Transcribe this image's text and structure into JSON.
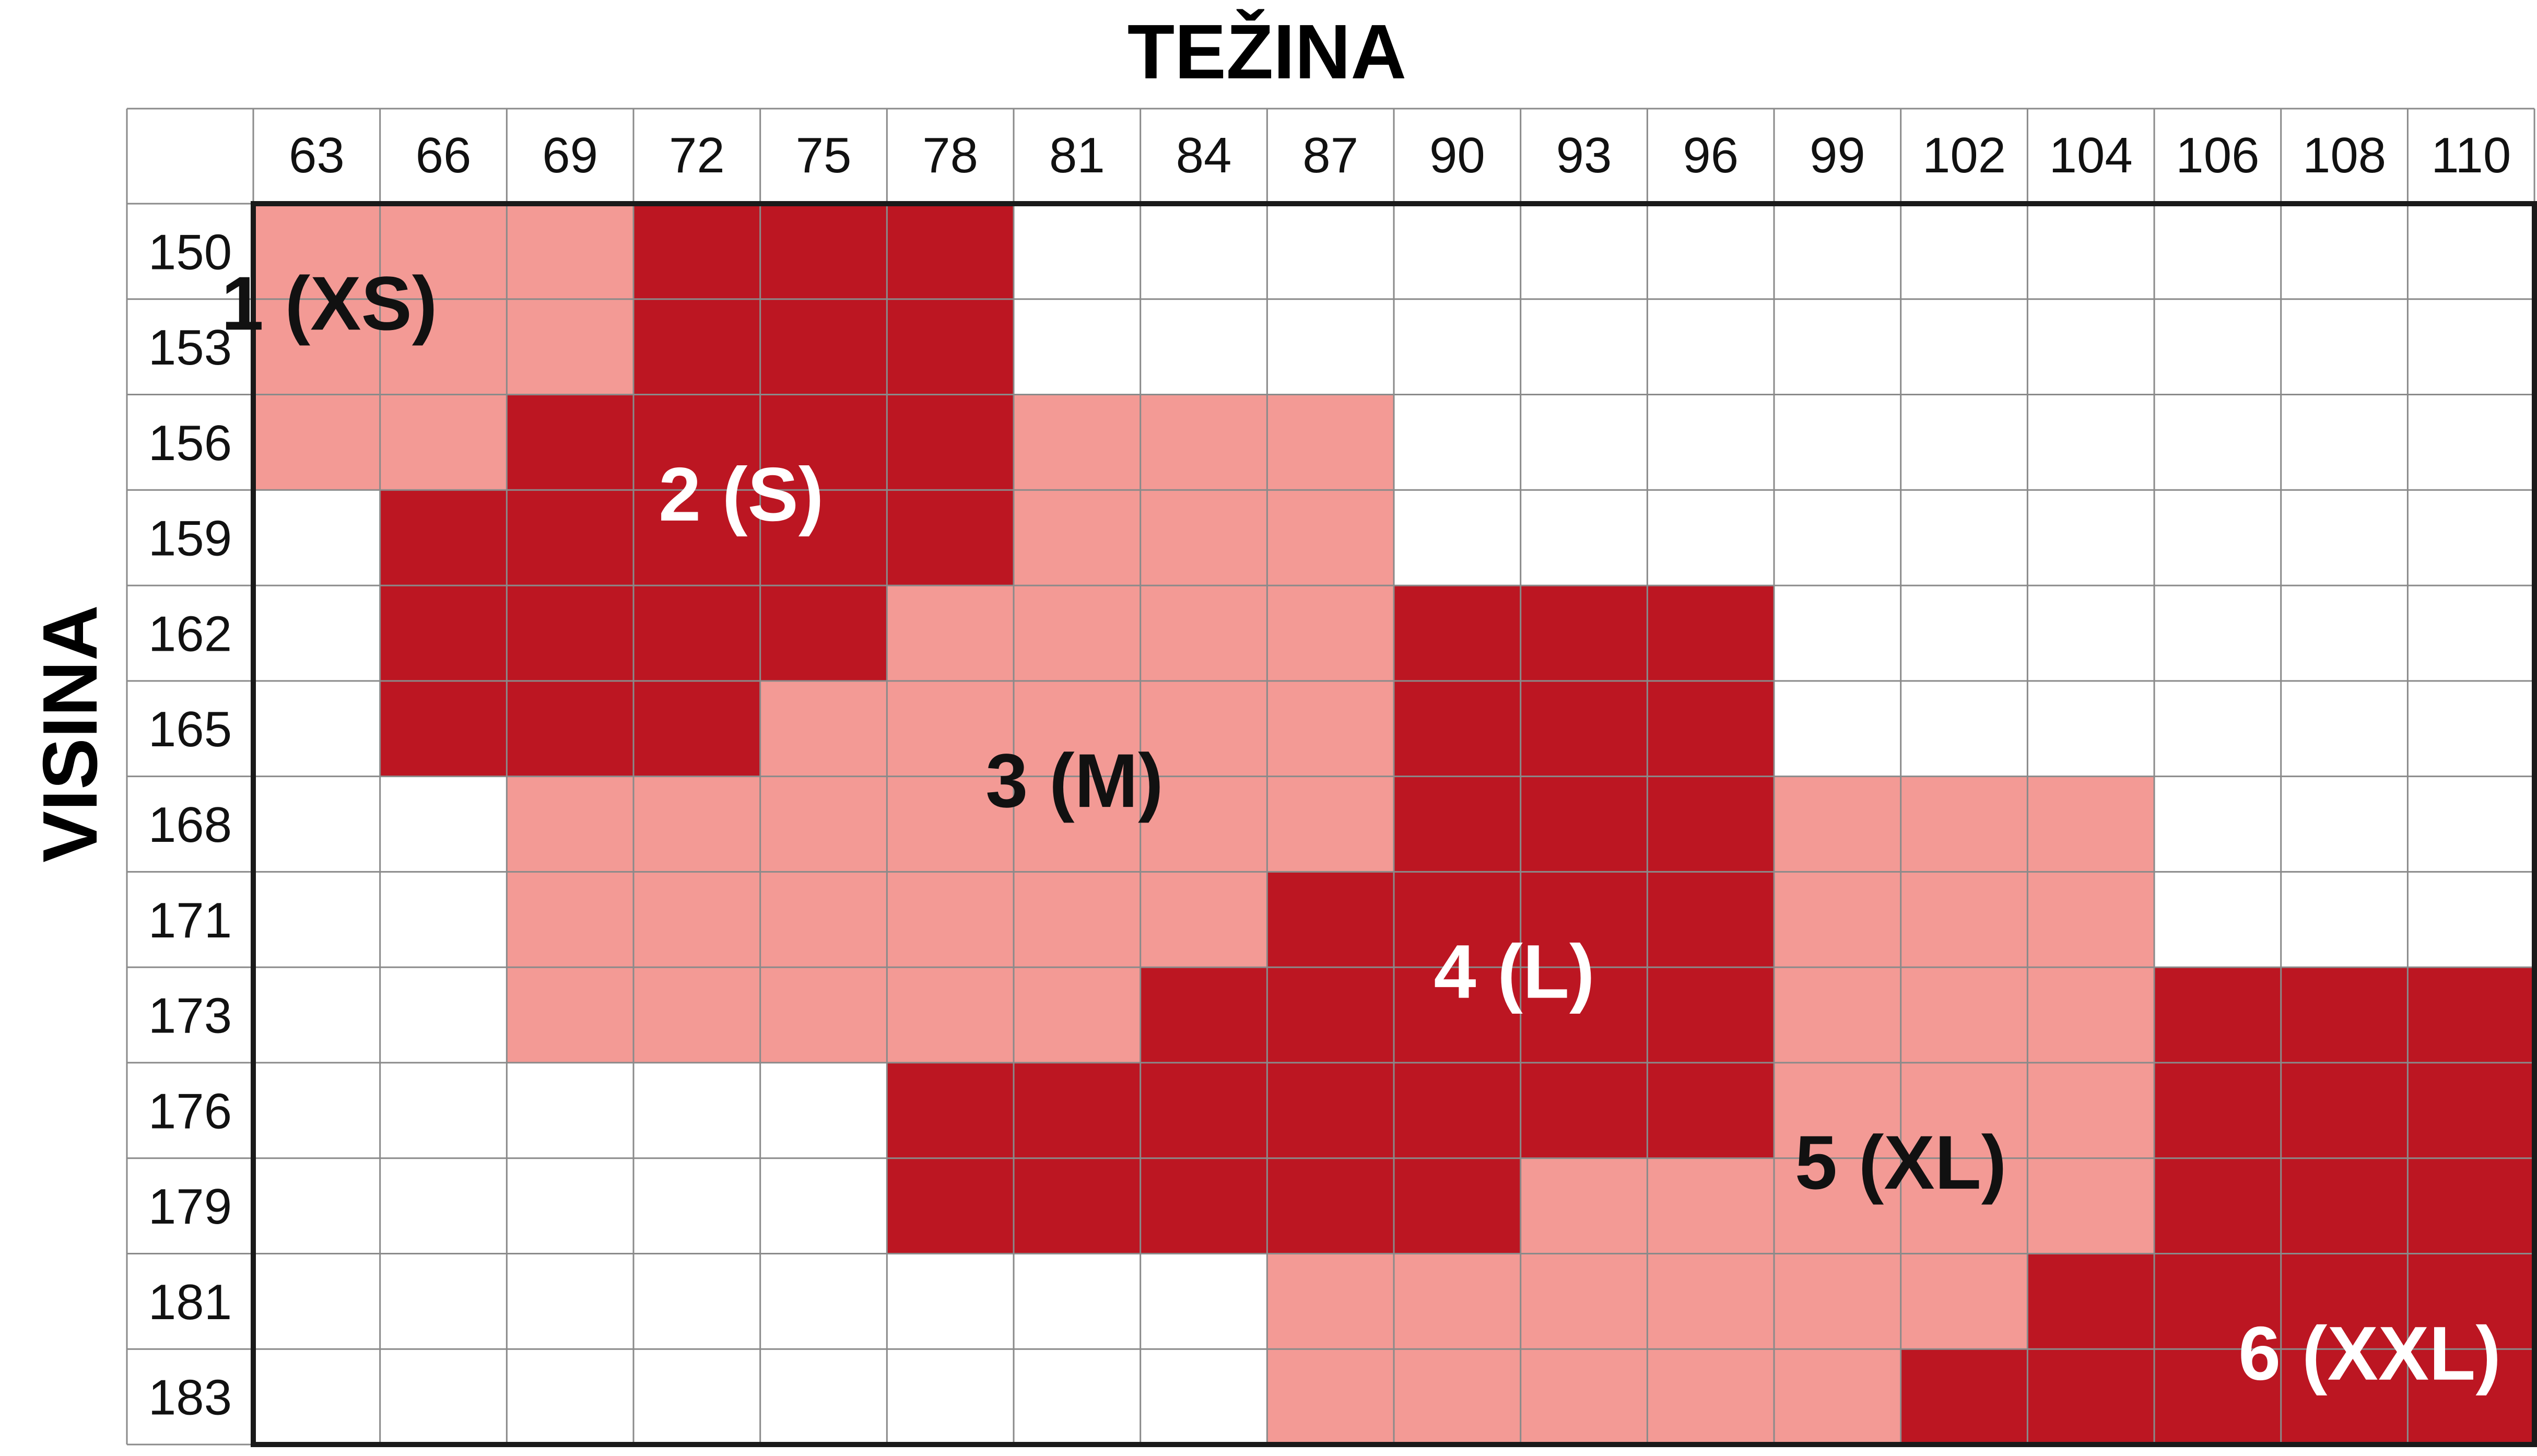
{
  "chart_data": {
    "type": "heatmap",
    "title": "TEŽINA",
    "xlabel": "TEŽINA",
    "ylabel": "VISINA",
    "x": [
      "63",
      "66",
      "69",
      "72",
      "75",
      "78",
      "81",
      "84",
      "87",
      "90",
      "93",
      "96",
      "99",
      "102",
      "104",
      "106",
      "108",
      "110"
    ],
    "y": [
      "150",
      "153",
      "156",
      "159",
      "162",
      "165",
      "168",
      "171",
      "173",
      "176",
      "179",
      "181",
      "183"
    ],
    "grid": true,
    "colors": {
      "light": "#F39A95",
      "dark": "#BC1622",
      "empty": "#FFFFFF",
      "grid": "#8A8A8A",
      "border": "#1A1A1A"
    },
    "zones": [
      {
        "size": 1,
        "label": "1 (XS)",
        "shade": "light",
        "text_color": "#111111",
        "cells": [
          [
            0,
            0
          ],
          [
            0,
            1
          ],
          [
            0,
            2
          ],
          [
            1,
            0
          ],
          [
            1,
            1
          ],
          [
            1,
            2
          ],
          [
            2,
            0
          ],
          [
            2,
            1
          ]
        ]
      },
      {
        "size": 2,
        "label": "2 (S)",
        "shade": "dark",
        "text_color": "#FFFFFF",
        "cells": [
          [
            0,
            3
          ],
          [
            0,
            4
          ],
          [
            0,
            5
          ],
          [
            1,
            3
          ],
          [
            1,
            4
          ],
          [
            1,
            5
          ],
          [
            2,
            2
          ],
          [
            2,
            3
          ],
          [
            2,
            4
          ],
          [
            2,
            5
          ],
          [
            3,
            1
          ],
          [
            3,
            2
          ],
          [
            3,
            3
          ],
          [
            3,
            4
          ],
          [
            3,
            5
          ],
          [
            4,
            1
          ],
          [
            4,
            2
          ],
          [
            4,
            3
          ],
          [
            4,
            4
          ],
          [
            5,
            1
          ],
          [
            5,
            2
          ],
          [
            5,
            3
          ]
        ]
      },
      {
        "size": 3,
        "label": "3 (M)",
        "shade": "light",
        "text_color": "#111111",
        "cells": [
          [
            2,
            6
          ],
          [
            2,
            7
          ],
          [
            2,
            8
          ],
          [
            3,
            6
          ],
          [
            3,
            7
          ],
          [
            3,
            8
          ],
          [
            4,
            5
          ],
          [
            4,
            6
          ],
          [
            4,
            7
          ],
          [
            4,
            8
          ],
          [
            5,
            4
          ],
          [
            5,
            5
          ],
          [
            5,
            6
          ],
          [
            5,
            7
          ],
          [
            5,
            8
          ],
          [
            6,
            2
          ],
          [
            6,
            3
          ],
          [
            6,
            4
          ],
          [
            6,
            5
          ],
          [
            6,
            6
          ],
          [
            6,
            7
          ],
          [
            6,
            8
          ],
          [
            7,
            2
          ],
          [
            7,
            3
          ],
          [
            7,
            4
          ],
          [
            7,
            5
          ],
          [
            7,
            6
          ],
          [
            7,
            7
          ],
          [
            8,
            2
          ],
          [
            8,
            3
          ],
          [
            8,
            4
          ],
          [
            8,
            5
          ],
          [
            8,
            6
          ]
        ]
      },
      {
        "size": 4,
        "label": "4 (L)",
        "shade": "dark",
        "text_color": "#FFFFFF",
        "cells": [
          [
            4,
            9
          ],
          [
            4,
            10
          ],
          [
            4,
            11
          ],
          [
            5,
            9
          ],
          [
            5,
            10
          ],
          [
            5,
            11
          ],
          [
            6,
            9
          ],
          [
            6,
            10
          ],
          [
            6,
            11
          ],
          [
            7,
            8
          ],
          [
            7,
            9
          ],
          [
            7,
            10
          ],
          [
            7,
            11
          ],
          [
            8,
            7
          ],
          [
            8,
            8
          ],
          [
            8,
            9
          ],
          [
            8,
            10
          ],
          [
            8,
            11
          ],
          [
            9,
            5
          ],
          [
            9,
            6
          ],
          [
            9,
            7
          ],
          [
            9,
            8
          ],
          [
            9,
            9
          ],
          [
            9,
            10
          ],
          [
            9,
            11
          ],
          [
            10,
            5
          ],
          [
            10,
            6
          ],
          [
            10,
            7
          ],
          [
            10,
            8
          ],
          [
            10,
            9
          ]
        ]
      },
      {
        "size": 5,
        "label": "5 (XL)",
        "shade": "light",
        "text_color": "#111111",
        "cells": [
          [
            6,
            12
          ],
          [
            6,
            13
          ],
          [
            6,
            14
          ],
          [
            7,
            12
          ],
          [
            7,
            13
          ],
          [
            7,
            14
          ],
          [
            8,
            12
          ],
          [
            8,
            13
          ],
          [
            8,
            14
          ],
          [
            9,
            12
          ],
          [
            9,
            13
          ],
          [
            9,
            14
          ],
          [
            10,
            10
          ],
          [
            10,
            11
          ],
          [
            10,
            12
          ],
          [
            10,
            13
          ],
          [
            10,
            14
          ],
          [
            11,
            8
          ],
          [
            11,
            9
          ],
          [
            11,
            10
          ],
          [
            11,
            11
          ],
          [
            11,
            12
          ],
          [
            11,
            13
          ],
          [
            12,
            8
          ],
          [
            12,
            9
          ],
          [
            12,
            10
          ],
          [
            12,
            11
          ],
          [
            12,
            12
          ]
        ]
      },
      {
        "size": 6,
        "label": "6 (XXL)",
        "shade": "dark",
        "text_color": "#FFFFFF",
        "cells": [
          [
            8,
            15
          ],
          [
            8,
            16
          ],
          [
            8,
            17
          ],
          [
            9,
            15
          ],
          [
            9,
            16
          ],
          [
            9,
            17
          ],
          [
            10,
            15
          ],
          [
            10,
            16
          ],
          [
            10,
            17
          ],
          [
            11,
            14
          ],
          [
            11,
            15
          ],
          [
            11,
            16
          ],
          [
            11,
            17
          ],
          [
            12,
            13
          ],
          [
            12,
            14
          ],
          [
            12,
            15
          ],
          [
            12,
            16
          ],
          [
            12,
            17
          ]
        ]
      }
    ]
  }
}
